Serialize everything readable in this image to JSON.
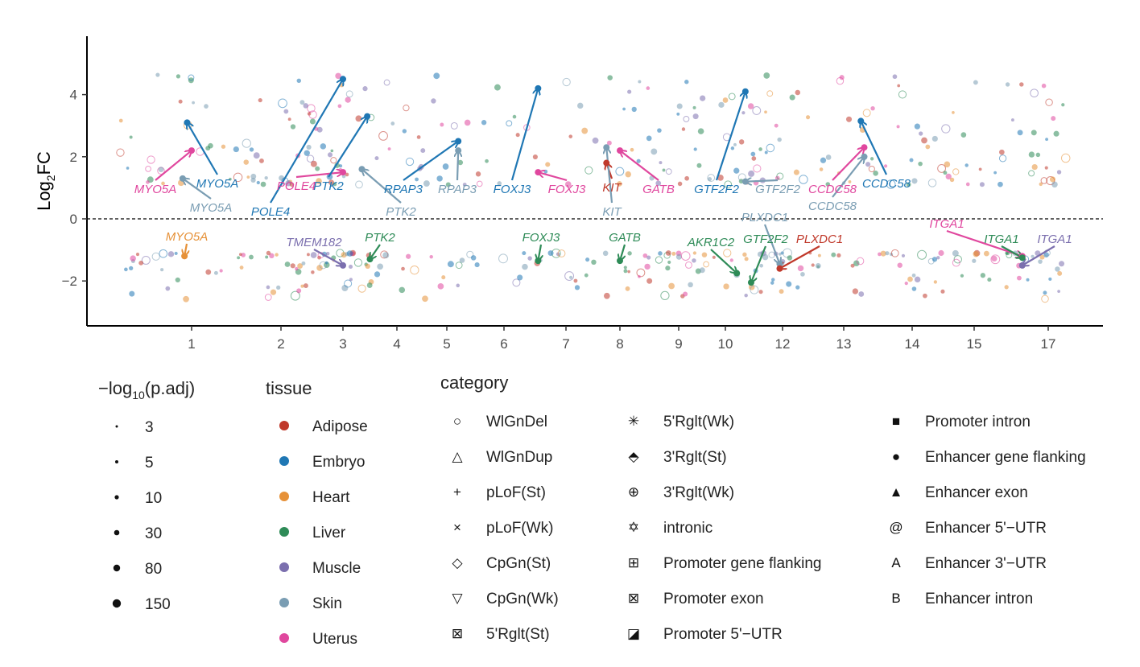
{
  "chart_data": {
    "type": "scatter",
    "ylabel_base": "Log",
    "ylabel_sub": "2",
    "ylabel_tail": "FC",
    "ylim": [
      -3.4,
      5.9
    ],
    "yticks": [
      -2,
      0,
      2,
      4
    ],
    "ytick_labels": [
      "−2",
      "0",
      "2",
      "4"
    ],
    "reference_line": 0,
    "chromosomes": [
      {
        "label": "1",
        "x": 1
      },
      {
        "label": "2",
        "x": 2
      },
      {
        "label": "3",
        "x": 3
      },
      {
        "label": "4",
        "x": 4
      },
      {
        "label": "5",
        "x": 5
      },
      {
        "label": "6",
        "x": 6
      },
      {
        "label": "7",
        "x": 7
      },
      {
        "label": "8",
        "x": 8
      },
      {
        "label": "9",
        "x": 9
      },
      {
        "label": "10",
        "x": 10
      },
      {
        "label": "12",
        "x": 12
      },
      {
        "label": "13",
        "x": 13
      },
      {
        "label": "14",
        "x": 14
      },
      {
        "label": "15",
        "x": 15
      },
      {
        "label": "17",
        "x": 17
      }
    ],
    "tissue_colors": {
      "Adipose": "#c0392b",
      "Embryo": "#1f77b4",
      "Heart": "#e69138",
      "Liver": "#2e8b57",
      "Muscle": "#7b6fae",
      "Skin": "#7a9db3",
      "Uterus": "#e0479e"
    },
    "highlight_points": [
      {
        "gene": "MYO5A",
        "tissue": "Uterus",
        "x": 1.0,
        "y": 2.2
      },
      {
        "gene": "MYO5A",
        "tissue": "Embryo",
        "x": 0.95,
        "y": 3.1
      },
      {
        "gene": "MYO5A",
        "tissue": "Skin",
        "x": 0.9,
        "y": 1.3
      },
      {
        "gene": "MYO5A",
        "tissue": "Heart",
        "x": 0.92,
        "y": -1.2
      },
      {
        "gene": "POLE4",
        "tissue": "Embryo",
        "x": 3.0,
        "y": 4.5
      },
      {
        "gene": "POLE4",
        "tissue": "Uterus",
        "x": 3.0,
        "y": 1.5
      },
      {
        "gene": "PTK2",
        "tissue": "Embryo",
        "x": 3.45,
        "y": 3.3
      },
      {
        "gene": "PTK2",
        "tissue": "Skin",
        "x": 3.35,
        "y": 1.6
      },
      {
        "gene": "PTK2",
        "tissue": "Liver",
        "x": 3.5,
        "y": -1.3
      },
      {
        "gene": "TMEM182",
        "tissue": "Muscle",
        "x": 3.0,
        "y": -1.5
      },
      {
        "gene": "RPAP3",
        "tissue": "Embryo",
        "x": 5.2,
        "y": 2.5
      },
      {
        "gene": "RPAP3",
        "tissue": "Skin",
        "x": 5.2,
        "y": 2.2
      },
      {
        "gene": "FOXJ3",
        "tissue": "Embryo",
        "x": 6.55,
        "y": 4.2
      },
      {
        "gene": "FOXJ3",
        "tissue": "Uterus",
        "x": 6.55,
        "y": 1.5
      },
      {
        "gene": "FOXJ3",
        "tissue": "Liver",
        "x": 6.55,
        "y": -1.35
      },
      {
        "gene": "KIT",
        "tissue": "Adipose",
        "x": 7.75,
        "y": 1.8
      },
      {
        "gene": "KIT",
        "tissue": "Skin",
        "x": 7.75,
        "y": 2.3
      },
      {
        "gene": "GATB",
        "tissue": "Uterus",
        "x": 8.0,
        "y": 2.2
      },
      {
        "gene": "GATB",
        "tissue": "Liver",
        "x": 8.0,
        "y": -1.35
      },
      {
        "gene": "GTF2F2",
        "tissue": "Embryo",
        "x": 10.7,
        "y": 4.1
      },
      {
        "gene": "GTF2F2",
        "tissue": "Skin",
        "x": 10.7,
        "y": 1.2
      },
      {
        "gene": "GTF2F2",
        "tissue": "Liver",
        "x": 10.9,
        "y": -2.05
      },
      {
        "gene": "AKR1C2",
        "tissue": "Liver",
        "x": 10.4,
        "y": -1.75
      },
      {
        "gene": "PLXDC1",
        "tissue": "Skin",
        "x": 11.9,
        "y": -1.45
      },
      {
        "gene": "PLXDC1",
        "tissue": "Adipose",
        "x": 11.9,
        "y": -1.6
      },
      {
        "gene": "CCDC58",
        "tissue": "Embryo",
        "x": 13.25,
        "y": 3.15
      },
      {
        "gene": "CCDC58",
        "tissue": "Uterus",
        "x": 13.3,
        "y": 2.3
      },
      {
        "gene": "CCDC58",
        "tissue": "Skin",
        "x": 13.3,
        "y": 2.0
      },
      {
        "gene": "ITGA1",
        "tissue": "Uterus",
        "x": 16.3,
        "y": -1.2
      },
      {
        "gene": "ITGA1",
        "tissue": "Liver",
        "x": 16.3,
        "y": -1.25
      },
      {
        "gene": "ITGA1",
        "tissue": "Muscle",
        "x": 16.3,
        "y": -1.5
      }
    ]
  },
  "legend": {
    "size": {
      "title_prefix": "−log",
      "title_sub": "10",
      "title_suffix": "(p.adj)",
      "items": [
        "3",
        "5",
        "10",
        "30",
        "80",
        "150"
      ]
    },
    "tissue": {
      "title": "tissue",
      "items": [
        {
          "label": "Adipose",
          "color": "#c0392b"
        },
        {
          "label": "Embryo",
          "color": "#1f77b4"
        },
        {
          "label": "Heart",
          "color": "#e69138"
        },
        {
          "label": "Liver",
          "color": "#2e8b57"
        },
        {
          "label": "Muscle",
          "color": "#7b6fae"
        },
        {
          "label": "Skin",
          "color": "#7a9db3"
        },
        {
          "label": "Uterus",
          "color": "#e0479e"
        }
      ]
    },
    "category": {
      "title": "category",
      "items": [
        {
          "glyph": "○",
          "label": "WlGnDel"
        },
        {
          "glyph": "△",
          "label": "WlGnDup"
        },
        {
          "glyph": "+",
          "label": "pLoF(St)"
        },
        {
          "glyph": "×",
          "label": "pLoF(Wk)"
        },
        {
          "glyph": "◇",
          "label": "CpGn(St)"
        },
        {
          "glyph": "▽",
          "label": "CpGn(Wk)"
        },
        {
          "glyph": "⊠",
          "label": "5'Rglt(St)"
        },
        {
          "glyph": "✳",
          "label": "5'Rglt(Wk)"
        },
        {
          "glyph": "⬘",
          "label": "3'Rglt(St)"
        },
        {
          "glyph": "⊕",
          "label": "3'Rglt(Wk)"
        },
        {
          "glyph": "✡",
          "label": "intronic"
        },
        {
          "glyph": "⊞",
          "label": "Promoter gene flanking"
        },
        {
          "glyph": "⊠",
          "label": "Promoter exon"
        },
        {
          "glyph": "◪",
          "label": "Promoter 5'−UTR"
        },
        {
          "glyph": "■",
          "label": "Promoter intron"
        },
        {
          "glyph": "●",
          "label": "Enhancer gene flanking"
        },
        {
          "glyph": "▲",
          "label": "Enhancer exon"
        },
        {
          "glyph": "@",
          "label": "Enhancer 5'−UTR"
        },
        {
          "glyph": "A",
          "label": "Enhancer 3'−UTR"
        },
        {
          "glyph": "B",
          "label": "Enhancer intron"
        }
      ]
    }
  }
}
